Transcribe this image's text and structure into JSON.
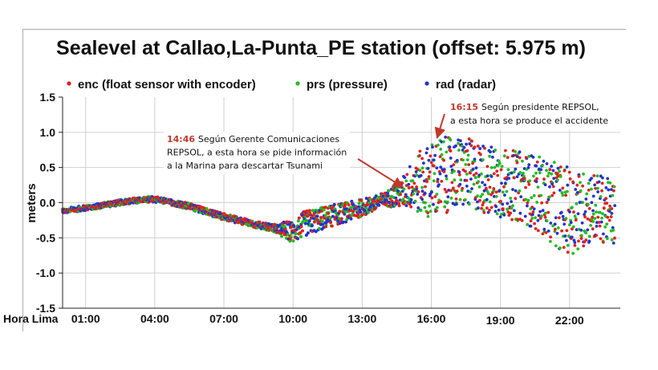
{
  "chart_data": {
    "type": "scatter",
    "title": "Sealevel at Callao,La-Punta_PE station (offset: 5.975 m)",
    "ylabel": "meters",
    "xlabel_prefix": "Hora Lima",
    "ylim": [
      -1.5,
      1.5
    ],
    "y_ticks": [
      "1.5",
      "1.0",
      "0.5",
      "0.0",
      "-0.5",
      "-1.0",
      "-1.5"
    ],
    "x_ticks": [
      "01:00",
      "04:00",
      "07:00",
      "10:00",
      "13:00",
      "16:00",
      "19:00",
      "22:00"
    ],
    "grid": true,
    "legend_position": "top",
    "series": [
      {
        "name": "enc (float sensor with encoder)",
        "color": "#e02020"
      },
      {
        "name": "prs (pressure)",
        "color": "#22bb22"
      },
      {
        "name": "rad (radar)",
        "color": "#2233cc"
      }
    ],
    "trend": {
      "x": [
        0.0,
        1.5,
        3.0,
        4.0,
        5.5,
        7.0,
        8.5,
        9.5,
        10.0,
        10.5,
        11.5,
        12.5,
        13.5,
        14.0,
        14.7,
        15.0,
        15.5,
        16.0,
        16.5,
        17.0,
        17.5,
        18.0,
        18.5,
        19.0,
        19.5,
        20.0,
        20.5,
        21.0,
        21.5,
        22.0,
        22.5,
        23.0,
        23.5,
        24.0
      ],
      "y": [
        -0.12,
        -0.05,
        0.03,
        0.05,
        -0.05,
        -0.2,
        -0.32,
        -0.38,
        -0.42,
        -0.3,
        -0.2,
        -0.12,
        -0.02,
        0.05,
        0.12,
        0.22,
        0.28,
        0.32,
        0.38,
        0.42,
        0.42,
        0.38,
        0.32,
        0.28,
        0.25,
        0.22,
        0.15,
        0.05,
        -0.05,
        -0.12,
        -0.12,
        -0.05,
        -0.1,
        -0.18
      ]
    },
    "amplitude": {
      "x": [
        0.0,
        9.0,
        10.0,
        10.5,
        14.0,
        14.7,
        15.5,
        16.3,
        17.0,
        18.5,
        20.0,
        21.5,
        22.0,
        23.0,
        24.0
      ],
      "y": [
        0.06,
        0.08,
        0.15,
        0.18,
        0.1,
        0.2,
        0.45,
        0.58,
        0.5,
        0.5,
        0.5,
        0.6,
        0.62,
        0.5,
        0.45
      ]
    },
    "annotations": [
      {
        "time": "14:46",
        "lines": [
          "Según Gerente Comunicaciones",
          "REPSOL, a esta hora se pide información",
          "a la Marina para descartar Tsunami"
        ],
        "point": {
          "x": 14.77,
          "y": 0.22
        }
      },
      {
        "time": "16:15",
        "lines": [
          "Según presidente REPSOL,",
          "a esta hora se produce el accidente"
        ],
        "point": {
          "x": 16.25,
          "y": 0.92
        }
      }
    ]
  }
}
